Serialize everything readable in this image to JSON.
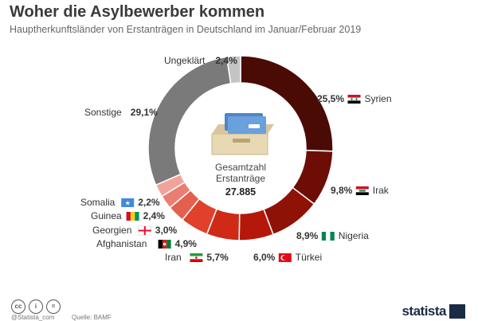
{
  "header": {
    "title": "Woher die Asylbewerber kommen",
    "subtitle": "Hauptherkunftsländer von Erstanträgen in Deutschland im Januar/Februar 2019"
  },
  "chart_data": {
    "type": "pie",
    "title": "Woher die Asylbewerber kommen",
    "subtitle": "Hauptherkunftsländer von Erstanträgen in Deutschland im Januar/Februar 2019",
    "center_label": [
      "Gesamtzahl",
      "Erstanträge"
    ],
    "center_value": "27.885",
    "slices": [
      {
        "label": "Syrien",
        "value": 25.5,
        "value_label": "25,5%",
        "color": "#4a0b04",
        "flag": "syria"
      },
      {
        "label": "Irak",
        "value": 9.8,
        "value_label": "9,8%",
        "color": "#6e0d05",
        "flag": "iraq"
      },
      {
        "label": "Nigeria",
        "value": 8.9,
        "value_label": "8,9%",
        "color": "#8f1207",
        "flag": "nigeria"
      },
      {
        "label": "Türkei",
        "value": 6.0,
        "value_label": "6,0%",
        "color": "#b5180a",
        "flag": "turkey"
      },
      {
        "label": "Iran",
        "value": 5.7,
        "value_label": "5,7%",
        "color": "#cf2a16",
        "flag": "iran"
      },
      {
        "label": "Afghanistan",
        "value": 4.9,
        "value_label": "4,9%",
        "color": "#e0402c",
        "flag": "afghanistan"
      },
      {
        "label": "Georgien",
        "value": 3.0,
        "value_label": "3,0%",
        "color": "#e3604f",
        "flag": "georgia"
      },
      {
        "label": "Guinea",
        "value": 2.4,
        "value_label": "2,4%",
        "color": "#e97f72",
        "flag": "guinea"
      },
      {
        "label": "Somalia",
        "value": 2.2,
        "value_label": "2,2%",
        "color": "#f1a39a",
        "flag": "somalia"
      },
      {
        "label": "Sonstige",
        "value": 29.1,
        "value_label": "29,1%",
        "color": "#7a7a7a",
        "flag": null
      },
      {
        "label": "Ungeklärt",
        "value": 2.4,
        "value_label": "2,4%",
        "color": "#c4c4c4",
        "flag": null
      }
    ]
  },
  "footer": {
    "copyright": "@Statista_com",
    "source": "Quelle: BAMF",
    "brand": "statista"
  }
}
